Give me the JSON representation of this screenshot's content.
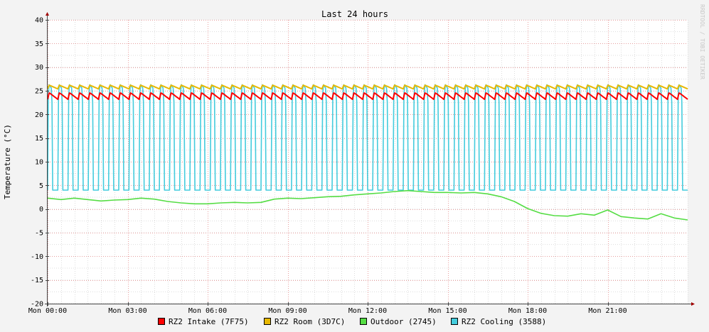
{
  "chart_data": {
    "type": "line",
    "title": "Last 24 hours",
    "ylabel": "Temperature (°C)",
    "xlabel": "",
    "watermark": "RRDTOOL / TOBI OETIKER",
    "ylim": [
      -20,
      40
    ],
    "yticks": [
      -20,
      -15,
      -10,
      -5,
      0,
      5,
      10,
      15,
      20,
      25,
      30,
      35,
      40
    ],
    "x_range_hours": [
      0,
      24
    ],
    "xticks": [
      {
        "hour": 0,
        "label": "Mon 00:00"
      },
      {
        "hour": 3,
        "label": "Mon 03:00"
      },
      {
        "hour": 6,
        "label": "Mon 06:00"
      },
      {
        "hour": 9,
        "label": "Mon 09:00"
      },
      {
        "hour": 12,
        "label": "Mon 12:00"
      },
      {
        "hour": 15,
        "label": "Mon 15:00"
      },
      {
        "hour": 18,
        "label": "Mon 18:00"
      },
      {
        "hour": 21,
        "label": "Mon 21:00"
      }
    ],
    "grid": true,
    "legend_position": "bottom",
    "series": [
      {
        "name": "RZ2 Intake (7F75)",
        "color": "#ff0000",
        "pattern": "sawtooth",
        "cycles_count": 63,
        "low": 23.2,
        "high": 24.6
      },
      {
        "name": "RZ2 Room (3D7C)",
        "color": "#e8b800",
        "pattern": "sawtooth",
        "cycles_count": 63,
        "low": 25.4,
        "high": 26.2
      },
      {
        "name": "Outdoor (2745)",
        "color": "#55dd44",
        "pattern": "smooth",
        "x": [
          0,
          0.5,
          1,
          1.5,
          2,
          2.5,
          3,
          3.5,
          4,
          4.5,
          5,
          5.5,
          6,
          6.5,
          7,
          7.5,
          8,
          8.5,
          9,
          9.5,
          10,
          10.5,
          11,
          11.5,
          12,
          12.5,
          13,
          13.5,
          14,
          14.5,
          15,
          15.5,
          16,
          16.5,
          17,
          17.5,
          18,
          18.5,
          19,
          19.5,
          20,
          20.5,
          21,
          21.5,
          22,
          22.5,
          23,
          23.5,
          24
        ],
        "y": [
          2.3,
          2.0,
          2.3,
          2.0,
          1.7,
          1.9,
          2.0,
          2.3,
          2.1,
          1.6,
          1.3,
          1.1,
          1.1,
          1.3,
          1.4,
          1.3,
          1.4,
          2.1,
          2.3,
          2.2,
          2.4,
          2.6,
          2.7,
          3.0,
          3.2,
          3.4,
          3.7,
          3.9,
          3.7,
          3.5,
          3.5,
          3.4,
          3.5,
          3.2,
          2.6,
          1.6,
          0.1,
          -0.9,
          -1.4,
          -1.5,
          -1.0,
          -1.3,
          -0.2,
          -1.6,
          -1.9,
          -2.1,
          -1.0,
          -1.9,
          -2.3
        ]
      },
      {
        "name": "RZ2 Cooling (3588)",
        "color": "#44ccdd",
        "pattern": "pulse",
        "cycles_count": 63,
        "low": 4.0,
        "high": 26.5
      }
    ]
  }
}
